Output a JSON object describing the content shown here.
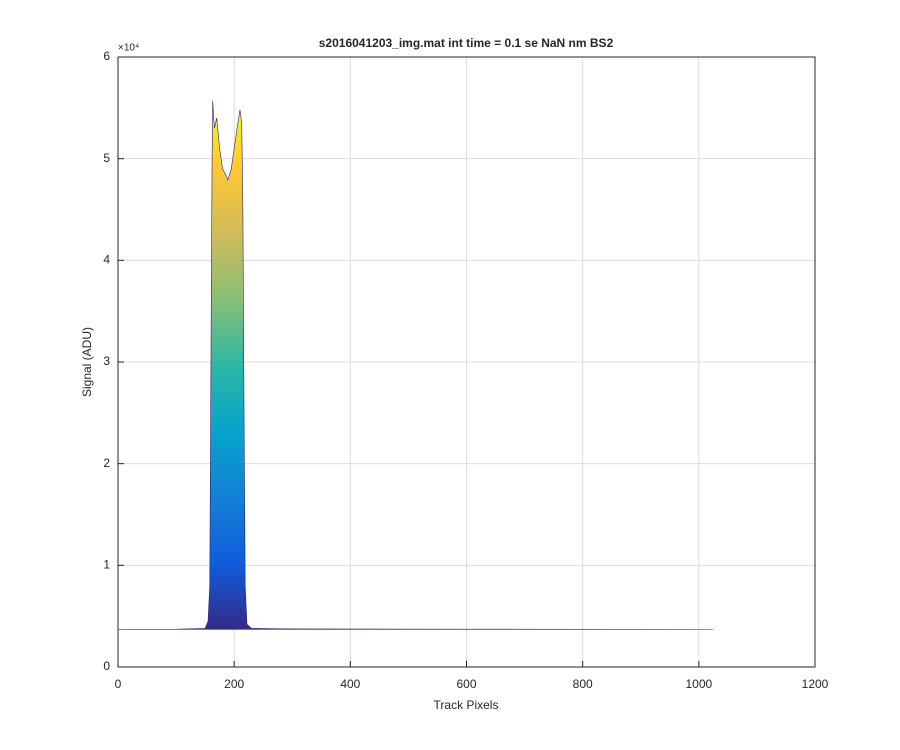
{
  "chart_data": {
    "type": "area",
    "title": "s2016041203_img.mat int time = 0.1 se  NaN nm BS2",
    "x_label": "Track Pixels",
    "y_label": "Signal (ADU)",
    "y_exponent_label": "×10⁴",
    "x": [
      1,
      100,
      150,
      155,
      158,
      160,
      162,
      163,
      166,
      170,
      175,
      180,
      185,
      189,
      195,
      200,
      205,
      210,
      213,
      215,
      217,
      219,
      222,
      230,
      300,
      600,
      1024
    ],
    "values": [
      3700,
      3720,
      3800,
      4500,
      8000,
      30000,
      50000,
      55700,
      53000,
      54000,
      51000,
      49000,
      48500,
      47900,
      49000,
      51000,
      53000,
      54800,
      53500,
      45000,
      25000,
      8000,
      4200,
      3800,
      3750,
      3720,
      3700
    ],
    "colormap": [
      "#352a87",
      "#0f5cdd",
      "#1481d6",
      "#06a4ca",
      "#2eb7a4",
      "#87bf77",
      "#d1bb59",
      "#fec832",
      "#f9fb0e"
    ],
    "line_color": "#2a1f7a",
    "xlim": [
      0,
      1200
    ],
    "xticks": [
      0,
      200,
      400,
      600,
      800,
      1000,
      1200
    ],
    "ylim": [
      0,
      60000
    ],
    "yticks": [
      {
        "value": 0,
        "label": "0"
      },
      {
        "value": 10000,
        "label": "1"
      },
      {
        "value": 20000,
        "label": "2"
      },
      {
        "value": 30000,
        "label": "3"
      },
      {
        "value": 40000,
        "label": "4"
      },
      {
        "value": 50000,
        "label": "5"
      },
      {
        "value": 60000,
        "label": "6"
      }
    ],
    "grid": true
  }
}
